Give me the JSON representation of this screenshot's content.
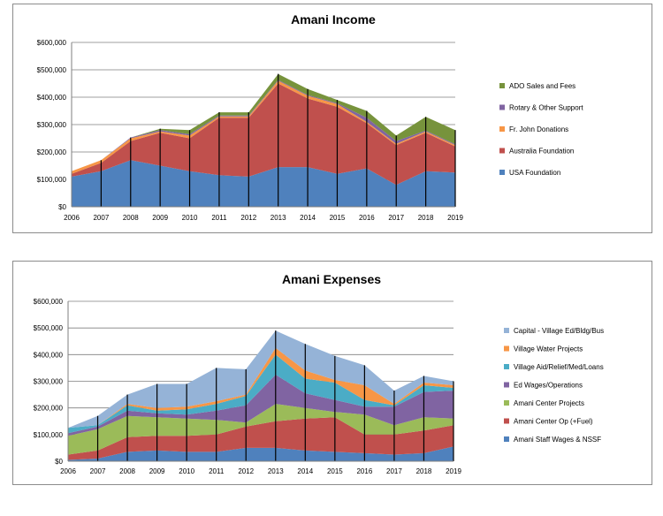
{
  "chart_data": [
    {
      "type": "area",
      "stacked": true,
      "title": "Amani Income",
      "xlabel": "",
      "ylabel": "",
      "x": [
        "2006",
        "2007",
        "2008",
        "2009",
        "2010",
        "2011",
        "2012",
        "2013",
        "2014",
        "2015",
        "2016",
        "2017",
        "2018",
        "2019"
      ],
      "ylim": [
        0,
        600000
      ],
      "ytick_labels": [
        "$0",
        "$100,000",
        "$200,000",
        "$300,000",
        "$400,000",
        "$500,000",
        "$600,000"
      ],
      "grid": true,
      "legend_position": "right",
      "series": [
        {
          "name": "USA Foundation",
          "color": "#4f81bd",
          "values": [
            110000,
            130000,
            170000,
            150000,
            130000,
            115000,
            110000,
            145000,
            145000,
            120000,
            140000,
            80000,
            130000,
            125000
          ]
        },
        {
          "name": "Australia Foundation",
          "color": "#c0504d",
          "values": [
            10000,
            30000,
            70000,
            120000,
            120000,
            210000,
            215000,
            305000,
            250000,
            245000,
            165000,
            145000,
            140000,
            95000
          ]
        },
        {
          "name": "Fr. John Donations",
          "color": "#f79646",
          "values": [
            10000,
            10000,
            10000,
            5000,
            10000,
            5000,
            5000,
            10000,
            10000,
            10000,
            5000,
            5000,
            5000,
            5000
          ]
        },
        {
          "name": "Rotary & Other Support",
          "color": "#8064a2",
          "values": [
            0,
            0,
            3000,
            5000,
            5000,
            3000,
            3000,
            3000,
            3000,
            3000,
            15000,
            10000,
            3000,
            3000
          ]
        },
        {
          "name": "ADO Sales and Fees",
          "color": "#77933c",
          "values": [
            0,
            0,
            0,
            5000,
            15000,
            12000,
            12000,
            22000,
            22000,
            12000,
            25000,
            20000,
            50000,
            52000
          ]
        }
      ]
    },
    {
      "type": "area",
      "stacked": true,
      "title": "Amani Expenses",
      "xlabel": "",
      "ylabel": "",
      "x": [
        "2006",
        "2007",
        "2008",
        "2009",
        "2010",
        "2011",
        "2012",
        "2013",
        "2014",
        "2015",
        "2016",
        "2017",
        "2018",
        "2019"
      ],
      "ylim": [
        0,
        600000
      ],
      "ytick_labels": [
        "$0",
        "$100,000",
        "$200,000",
        "$300,000",
        "$400,000",
        "$500,000",
        "$600,000"
      ],
      "grid": true,
      "legend_position": "right",
      "series": [
        {
          "name": "Amani Staff Wages & NSSF",
          "color": "#4f81bd",
          "values": [
            5000,
            10000,
            35000,
            40000,
            35000,
            35000,
            50000,
            50000,
            40000,
            35000,
            30000,
            25000,
            30000,
            55000
          ]
        },
        {
          "name": "Amani Center Op (+Fuel)",
          "color": "#c0504d",
          "values": [
            20000,
            30000,
            55000,
            55000,
            60000,
            65000,
            80000,
            100000,
            120000,
            130000,
            70000,
            75000,
            85000,
            80000
          ]
        },
        {
          "name": "Amani Center Projects",
          "color": "#9bbb59",
          "values": [
            70000,
            80000,
            80000,
            70000,
            65000,
            55000,
            15000,
            65000,
            40000,
            20000,
            75000,
            35000,
            50000,
            25000
          ]
        },
        {
          "name": "Ed Wages/Operations",
          "color": "#8064a2",
          "values": [
            10000,
            10000,
            20000,
            15000,
            15000,
            35000,
            65000,
            110000,
            55000,
            45000,
            30000,
            70000,
            95000,
            105000
          ]
        },
        {
          "name": "Village Aid/Relief/Med/Loans",
          "color": "#4bacc6",
          "values": [
            20000,
            5000,
            20000,
            10000,
            20000,
            25000,
            35000,
            75000,
            55000,
            65000,
            25000,
            5000,
            25000,
            10000
          ]
        },
        {
          "name": "Village Water Projects",
          "color": "#f79646",
          "values": [
            0,
            0,
            5000,
            10000,
            10000,
            10000,
            5000,
            25000,
            30000,
            10000,
            55000,
            5000,
            10000,
            10000
          ]
        },
        {
          "name": "Capital - Village Ed/Bldg/Bus",
          "color": "#95b3d7",
          "values": [
            0,
            35000,
            35000,
            90000,
            85000,
            125000,
            95000,
            65000,
            100000,
            90000,
            75000,
            50000,
            25000,
            15000
          ]
        }
      ]
    }
  ]
}
